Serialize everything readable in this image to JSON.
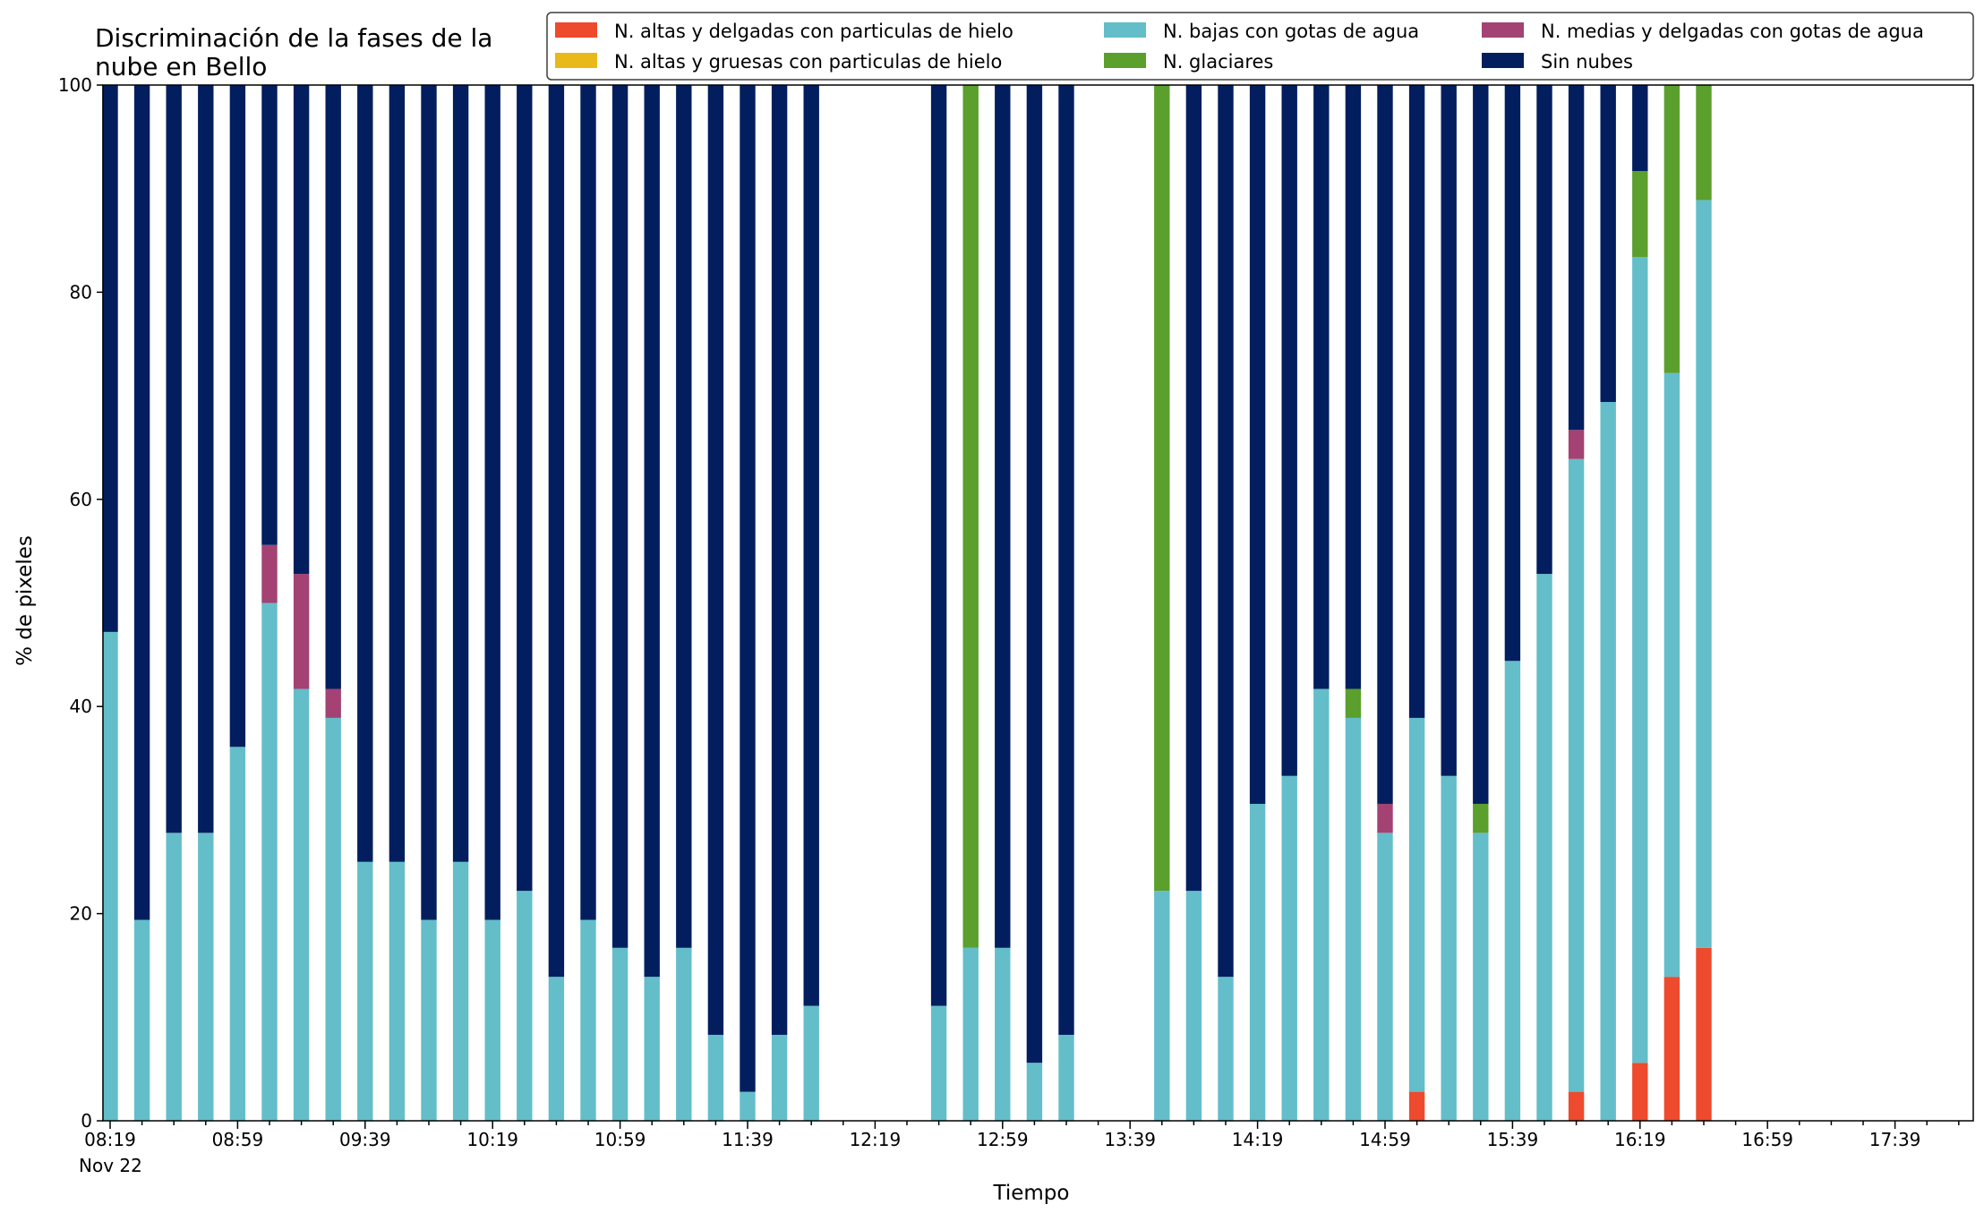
{
  "chart_data": {
    "type": "bar",
    "stacked": true,
    "title_lines": [
      "Discriminación de la fases de la",
      "nube en Bello"
    ],
    "xlabel": "Tiempo",
    "ylabel": "% de pixeles",
    "ylim": [
      0,
      100
    ],
    "yticks": [
      0,
      20,
      40,
      60,
      80,
      100
    ],
    "x_axis": {
      "start": "08:19",
      "end": "17:59",
      "step_minutes": 10,
      "tick_labels": [
        "08:19",
        "08:59",
        "09:39",
        "10:19",
        "10:59",
        "11:39",
        "12:19",
        "12:59",
        "13:39",
        "14:19",
        "14:59",
        "15:39",
        "16:19",
        "16:59",
        "17:39"
      ],
      "date_label": "Nov 22"
    },
    "grid": false,
    "legend_position": "top-right",
    "series": [
      {
        "name": "N. altas y delgadas con particulas de hielo",
        "color": "#ee4a2d"
      },
      {
        "name": "N. altas y gruesas con particulas de hielo",
        "color": "#e8b919"
      },
      {
        "name": "N. bajas con gotas de agua",
        "color": "#63bec9"
      },
      {
        "name": "N. glaciares",
        "color": "#5b9f2c"
      },
      {
        "name": "N. medias y delgadas con gotas de agua",
        "color": "#a34273"
      },
      {
        "name": "Sin nubes",
        "color": "#031e5e"
      }
    ],
    "bars": [
      {
        "time": "08:19",
        "values": [
          0,
          0,
          47.2,
          0,
          0,
          52.8
        ]
      },
      {
        "time": "08:29",
        "values": [
          0,
          0,
          19.4,
          0,
          0,
          80.6
        ]
      },
      {
        "time": "08:39",
        "values": [
          0,
          0,
          27.8,
          0,
          0,
          72.2
        ]
      },
      {
        "time": "08:49",
        "values": [
          0,
          0,
          27.8,
          0,
          0,
          72.2
        ]
      },
      {
        "time": "08:59",
        "values": [
          0,
          0,
          36.1,
          0,
          0,
          63.9
        ]
      },
      {
        "time": "09:09",
        "values": [
          0,
          0,
          50.0,
          0,
          5.6,
          44.4
        ]
      },
      {
        "time": "09:19",
        "values": [
          0,
          0,
          41.7,
          0,
          11.1,
          47.2
        ]
      },
      {
        "time": "09:29",
        "values": [
          0,
          0,
          38.9,
          0,
          2.8,
          58.3
        ]
      },
      {
        "time": "09:39",
        "values": [
          0,
          0,
          25.0,
          0,
          0,
          75.0
        ]
      },
      {
        "time": "09:49",
        "values": [
          0,
          0,
          25.0,
          0,
          0,
          75.0
        ]
      },
      {
        "time": "09:59",
        "values": [
          0,
          0,
          19.4,
          0,
          0,
          80.6
        ]
      },
      {
        "time": "10:09",
        "values": [
          0,
          0,
          25.0,
          0,
          0,
          75.0
        ]
      },
      {
        "time": "10:19",
        "values": [
          0,
          0,
          19.4,
          0,
          0,
          80.6
        ]
      },
      {
        "time": "10:29",
        "values": [
          0,
          0,
          22.2,
          0,
          0,
          77.8
        ]
      },
      {
        "time": "10:39",
        "values": [
          0,
          0,
          13.9,
          0,
          0,
          86.1
        ]
      },
      {
        "time": "10:49",
        "values": [
          0,
          0,
          19.4,
          0,
          0,
          80.6
        ]
      },
      {
        "time": "10:59",
        "values": [
          0,
          0,
          16.7,
          0,
          0,
          83.3
        ]
      },
      {
        "time": "11:09",
        "values": [
          0,
          0,
          13.9,
          0,
          0,
          86.1
        ]
      },
      {
        "time": "11:19",
        "values": [
          0,
          0,
          16.7,
          0,
          0,
          83.3
        ]
      },
      {
        "time": "11:29",
        "values": [
          0,
          0,
          8.3,
          0,
          0,
          91.7
        ]
      },
      {
        "time": "11:39",
        "values": [
          0,
          0,
          2.8,
          0,
          0,
          97.2
        ]
      },
      {
        "time": "11:49",
        "values": [
          0,
          0,
          8.3,
          0,
          0,
          91.7
        ]
      },
      {
        "time": "11:59",
        "values": [
          0,
          0,
          11.1,
          0,
          0,
          88.9
        ]
      },
      {
        "time": "12:39",
        "values": [
          0,
          0,
          11.1,
          0,
          0,
          88.9
        ]
      },
      {
        "time": "12:49",
        "values": [
          0,
          0,
          16.7,
          83.3,
          0,
          0
        ]
      },
      {
        "time": "12:59",
        "values": [
          0,
          0,
          16.7,
          0,
          0,
          83.3
        ]
      },
      {
        "time": "13:09",
        "values": [
          0,
          0,
          5.6,
          0,
          0,
          94.4
        ]
      },
      {
        "time": "13:19",
        "values": [
          0,
          0,
          8.3,
          0,
          0,
          91.7
        ]
      },
      {
        "time": "13:49",
        "values": [
          0,
          0,
          22.2,
          77.8,
          0,
          0
        ]
      },
      {
        "time": "13:59",
        "values": [
          0,
          0,
          22.2,
          0,
          0,
          77.8
        ]
      },
      {
        "time": "14:09",
        "values": [
          0,
          0,
          13.9,
          0,
          0,
          86.1
        ]
      },
      {
        "time": "14:19",
        "values": [
          0,
          0,
          30.6,
          0,
          0,
          69.4
        ]
      },
      {
        "time": "14:29",
        "values": [
          0,
          0,
          33.3,
          0,
          0,
          66.7
        ]
      },
      {
        "time": "14:39",
        "values": [
          0,
          0,
          41.7,
          0,
          0,
          58.3
        ]
      },
      {
        "time": "14:49",
        "values": [
          0,
          0,
          38.9,
          2.8,
          0,
          58.3
        ]
      },
      {
        "time": "14:59",
        "values": [
          0,
          0,
          27.8,
          0,
          2.8,
          69.4
        ]
      },
      {
        "time": "15:09",
        "values": [
          2.8,
          0,
          36.1,
          0,
          0,
          61.1
        ]
      },
      {
        "time": "15:19",
        "values": [
          0,
          0,
          33.3,
          0,
          0,
          66.7
        ]
      },
      {
        "time": "15:29",
        "values": [
          0,
          0,
          27.8,
          2.8,
          0,
          69.4
        ]
      },
      {
        "time": "15:39",
        "values": [
          0,
          0,
          44.4,
          0,
          0,
          55.6
        ]
      },
      {
        "time": "15:49",
        "values": [
          0,
          0,
          52.8,
          0,
          0,
          47.2
        ]
      },
      {
        "time": "15:59",
        "values": [
          2.8,
          0,
          61.1,
          0,
          2.8,
          33.3
        ]
      },
      {
        "time": "16:09",
        "values": [
          0,
          0,
          69.4,
          0,
          0,
          30.6
        ]
      },
      {
        "time": "16:19",
        "values": [
          5.6,
          0,
          77.8,
          8.3,
          0,
          8.3
        ]
      },
      {
        "time": "16:29",
        "values": [
          13.9,
          0,
          58.3,
          27.8,
          0,
          0
        ]
      },
      {
        "time": "16:39",
        "values": [
          16.7,
          0,
          72.2,
          11.1,
          0,
          0
        ]
      }
    ]
  }
}
